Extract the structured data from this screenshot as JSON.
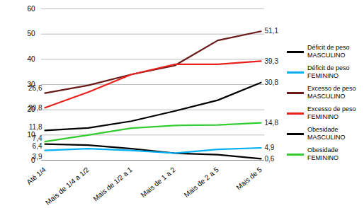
{
  "chart_data": {
    "type": "line",
    "categories": [
      "Até 1/4",
      "Mais de 1/4 a 1/2",
      "Mais de 1/2 a 1",
      "Mais de 1 a 2",
      "Mais de 2 a 5",
      "Mais de 5"
    ],
    "ylim": [
      0,
      60
    ],
    "yticks": [
      0,
      10,
      20,
      30,
      40,
      50,
      60
    ],
    "grid": true,
    "legend": "right",
    "data_labels": true,
    "series": [
      {
        "name": "Déficit de peso MASCULINO",
        "color": "#000000",
        "values": [
          6.4,
          6.0,
          4.6,
          2.8,
          2.2,
          0.6
        ],
        "value_labels": [
          "6,4",
          null,
          null,
          null,
          null,
          "0,6"
        ]
      },
      {
        "name": "Déficit de peso FEMININO",
        "color": "#00b0f0",
        "values": [
          3.9,
          4.6,
          3.9,
          2.8,
          4.3,
          4.9
        ],
        "value_labels": [
          "3,9",
          null,
          null,
          null,
          null,
          "4,9"
        ]
      },
      {
        "name": "Excesso de peso MASCULINO",
        "color": "#6b1a1a",
        "values": [
          26.6,
          29.7,
          34.0,
          37.5,
          47.5,
          51.1
        ],
        "value_labels": [
          "26,6",
          null,
          null,
          null,
          null,
          "51,1"
        ]
      },
      {
        "name": "Excesso de peso FEMININO",
        "color": "#e8201e",
        "values": [
          20.8,
          27.0,
          34.0,
          38.0,
          38.0,
          39.3
        ],
        "value_labels": [
          "20,8",
          null,
          null,
          null,
          null,
          "39,3"
        ]
      },
      {
        "name": "Obesidade MASCULINO",
        "color": "#000000",
        "values": [
          11.8,
          12.8,
          15.5,
          19.5,
          23.8,
          30.8
        ],
        "value_labels": [
          "11,8",
          null,
          null,
          null,
          null,
          "30,8"
        ]
      },
      {
        "name": "Obesidade FEMININO",
        "color": "#33cc33",
        "values": [
          7.4,
          10.0,
          12.7,
          13.8,
          14.0,
          14.8
        ],
        "value_labels": [
          "7,4",
          null,
          null,
          null,
          null,
          "14,8"
        ]
      }
    ]
  }
}
